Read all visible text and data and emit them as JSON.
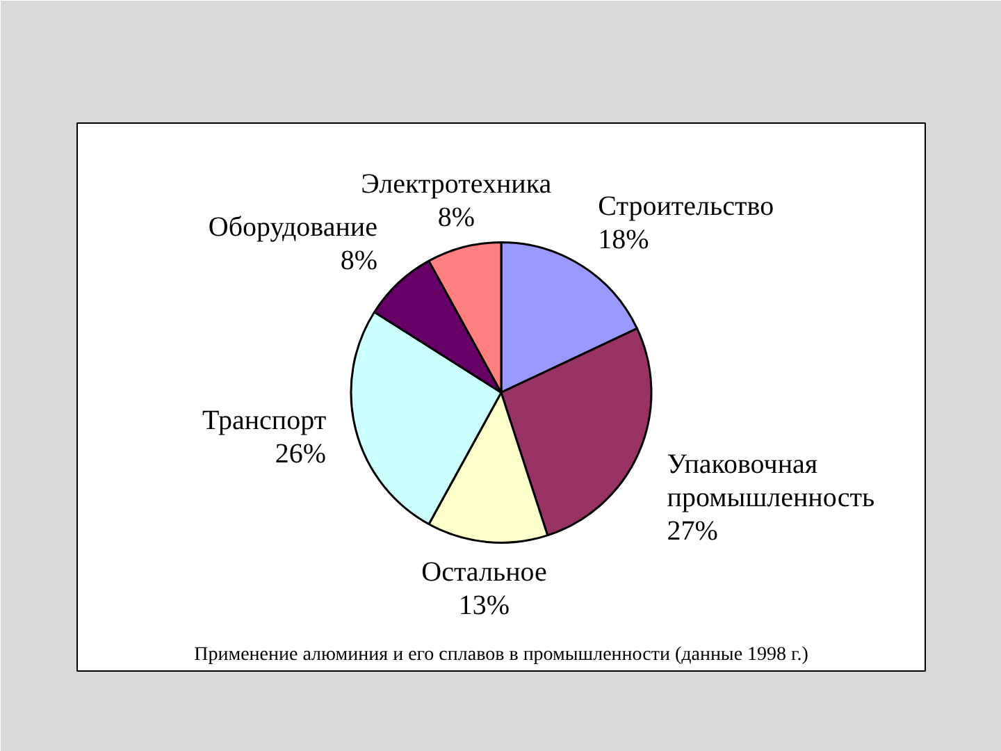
{
  "chart_data": {
    "type": "pie",
    "categories": [
      "Строительство",
      "Упаковочная промышленность",
      "Остальное",
      "Транспорт",
      "Оборудование",
      "Электротехника"
    ],
    "values": [
      18,
      27,
      13,
      26,
      8,
      8
    ],
    "value_labels": [
      "18%",
      "27%",
      "13%",
      "26%",
      "8%",
      "8%"
    ],
    "colors": [
      "#9999ff",
      "#993366",
      "#ffffcc",
      "#ccffff",
      "#660066",
      "#ff8080"
    ],
    "annotations": [
      "Применение алюминия и его сплавов в промышленности (данные 1998 г.)"
    ]
  }
}
